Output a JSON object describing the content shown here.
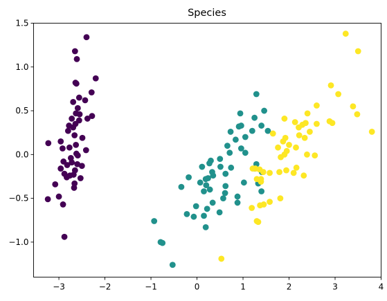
{
  "chart_data": {
    "type": "scatter",
    "title": "Species",
    "xlabel": "",
    "ylabel": "",
    "xlim": [
      -3.55,
      4.0
    ],
    "ylim": [
      -1.4,
      1.5
    ],
    "x_ticks": [
      -3,
      -2,
      -1,
      0,
      1,
      2,
      3,
      4
    ],
    "y_ticks": [
      -1.0,
      -0.5,
      0.0,
      0.5,
      1.0,
      1.5
    ],
    "x_tick_labels": [
      "−3",
      "−2",
      "−1",
      "0",
      "1",
      "2",
      "3",
      "4"
    ],
    "y_tick_labels": [
      "−1.0",
      "−0.5",
      "0.0",
      "0.5",
      "1.0",
      "1.5"
    ],
    "grid": false,
    "legend": "none",
    "series": [
      {
        "color": "#440154",
        "points": [
          [
            -2.4,
            1.34
          ],
          [
            -2.65,
            1.18
          ],
          [
            -2.61,
            1.09
          ],
          [
            -2.2,
            0.87
          ],
          [
            -2.64,
            0.82
          ],
          [
            -2.62,
            0.81
          ],
          [
            -2.29,
            0.71
          ],
          [
            -2.56,
            0.65
          ],
          [
            -2.43,
            0.62
          ],
          [
            -2.69,
            0.6
          ],
          [
            -2.59,
            0.53
          ],
          [
            -2.63,
            0.47
          ],
          [
            -2.55,
            0.46
          ],
          [
            -2.28,
            0.44
          ],
          [
            -2.38,
            0.41
          ],
          [
            -2.72,
            0.41
          ],
          [
            -2.56,
            0.39
          ],
          [
            -2.64,
            0.35
          ],
          [
            -2.78,
            0.33
          ],
          [
            -2.69,
            0.31
          ],
          [
            -2.8,
            0.27
          ],
          [
            -2.66,
            0.22
          ],
          [
            -2.49,
            0.19
          ],
          [
            -2.96,
            0.15
          ],
          [
            -3.23,
            0.13
          ],
          [
            -2.63,
            0.11
          ],
          [
            -2.77,
            0.08
          ],
          [
            -2.92,
            0.07
          ],
          [
            -2.41,
            0.05
          ],
          [
            -2.62,
            0.01
          ],
          [
            -2.59,
            -0.01
          ],
          [
            -2.74,
            -0.04
          ],
          [
            -2.9,
            -0.08
          ],
          [
            -2.72,
            -0.09
          ],
          [
            -2.6,
            -0.11
          ],
          [
            -2.82,
            -0.12
          ],
          [
            -2.5,
            -0.13
          ],
          [
            -2.96,
            -0.16
          ],
          [
            -2.65,
            -0.18
          ],
          [
            -2.88,
            -0.22
          ],
          [
            -2.68,
            -0.23
          ],
          [
            -2.83,
            -0.26
          ],
          [
            -2.76,
            -0.24
          ],
          [
            -2.53,
            -0.27
          ],
          [
            -3.08,
            -0.34
          ],
          [
            -2.66,
            -0.33
          ],
          [
            -2.67,
            -0.38
          ],
          [
            -3.24,
            -0.51
          ],
          [
            -3.0,
            -0.48
          ],
          [
            -2.91,
            -0.57
          ],
          [
            -2.88,
            -0.94
          ]
        ]
      },
      {
        "color": "#21918c",
        "points": [
          [
            1.29,
            0.69
          ],
          [
            1.46,
            0.5
          ],
          [
            1.25,
            0.42
          ],
          [
            0.94,
            0.47
          ],
          [
            1.4,
            0.33
          ],
          [
            0.91,
            0.32
          ],
          [
            0.96,
            0.33
          ],
          [
            0.73,
            0.26
          ],
          [
            1.2,
            0.27
          ],
          [
            1.54,
            0.27
          ],
          [
            1.05,
            0.2
          ],
          [
            0.84,
            0.17
          ],
          [
            0.66,
            0.1
          ],
          [
            0.96,
            0.07
          ],
          [
            1.05,
            0.02
          ],
          [
            0.71,
            0.02
          ],
          [
            0.5,
            -0.05
          ],
          [
            0.3,
            -0.07
          ],
          [
            0.27,
            -0.1
          ],
          [
            0.11,
            -0.14
          ],
          [
            0.51,
            -0.14
          ],
          [
            0.74,
            -0.15
          ],
          [
            1.29,
            -0.11
          ],
          [
            1.26,
            -0.16
          ],
          [
            1.41,
            -0.2
          ],
          [
            0.33,
            -0.2
          ],
          [
            0.62,
            -0.22
          ],
          [
            0.35,
            -0.24
          ],
          [
            0.19,
            -0.28
          ],
          [
            0.24,
            -0.27
          ],
          [
            -0.18,
            -0.26
          ],
          [
            0.07,
            -0.32
          ],
          [
            1.02,
            -0.32
          ],
          [
            1.33,
            -0.33
          ],
          [
            0.2,
            -0.35
          ],
          [
            -0.34,
            -0.37
          ],
          [
            0.62,
            -0.36
          ],
          [
            0.28,
            -0.4
          ],
          [
            0.15,
            -0.42
          ],
          [
            1.4,
            -0.42
          ],
          [
            0.61,
            -0.44
          ],
          [
            0.88,
            -0.48
          ],
          [
            0.57,
            -0.5
          ],
          [
            0.34,
            -0.55
          ],
          [
            -0.02,
            -0.59
          ],
          [
            0.22,
            -0.62
          ],
          [
            0.49,
            -0.66
          ],
          [
            -0.22,
            -0.68
          ],
          [
            0.15,
            -0.7
          ],
          [
            -0.07,
            -0.71
          ],
          [
            0.88,
            -0.55
          ],
          [
            -0.93,
            -0.76
          ],
          [
            0.19,
            -0.83
          ],
          [
            -0.79,
            -1.0
          ],
          [
            -0.75,
            -1.01
          ],
          [
            -0.53,
            -1.26
          ]
        ]
      },
      {
        "color": "#fde725",
        "points": [
          [
            3.23,
            1.38
          ],
          [
            3.5,
            1.18
          ],
          [
            2.91,
            0.79
          ],
          [
            3.07,
            0.69
          ],
          [
            2.6,
            0.56
          ],
          [
            3.39,
            0.55
          ],
          [
            2.4,
            0.47
          ],
          [
            3.48,
            0.46
          ],
          [
            1.9,
            0.41
          ],
          [
            2.13,
            0.37
          ],
          [
            2.36,
            0.36
          ],
          [
            2.29,
            0.34
          ],
          [
            2.88,
            0.38
          ],
          [
            2.94,
            0.36
          ],
          [
            2.6,
            0.35
          ],
          [
            2.21,
            0.31
          ],
          [
            2.45,
            0.26
          ],
          [
            3.8,
            0.26
          ],
          [
            1.65,
            0.24
          ],
          [
            1.92,
            0.19
          ],
          [
            1.87,
            0.15
          ],
          [
            2.22,
            0.22
          ],
          [
            2.34,
            0.19
          ],
          [
            2.0,
            0.11
          ],
          [
            2.15,
            0.08
          ],
          [
            1.76,
            0.08
          ],
          [
            1.95,
            0.04
          ],
          [
            1.9,
            0.0
          ],
          [
            2.39,
            0.0
          ],
          [
            1.82,
            -0.03
          ],
          [
            2.56,
            -0.01
          ],
          [
            2.16,
            -0.15
          ],
          [
            1.21,
            -0.16
          ],
          [
            1.27,
            -0.16
          ],
          [
            1.36,
            -0.17
          ],
          [
            1.79,
            -0.2
          ],
          [
            1.94,
            -0.18
          ],
          [
            1.44,
            -0.2
          ],
          [
            2.1,
            -0.21
          ],
          [
            1.58,
            -0.21
          ],
          [
            2.32,
            -0.24
          ],
          [
            1.3,
            -0.28
          ],
          [
            1.39,
            -0.28
          ],
          [
            1.39,
            -0.31
          ],
          [
            1.81,
            -0.5
          ],
          [
            1.58,
            -0.54
          ],
          [
            1.45,
            -0.57
          ],
          [
            1.37,
            -0.58
          ],
          [
            1.19,
            -0.61
          ],
          [
            1.3,
            -0.76
          ],
          [
            1.33,
            -0.77
          ],
          [
            0.53,
            -1.19
          ]
        ]
      }
    ]
  }
}
